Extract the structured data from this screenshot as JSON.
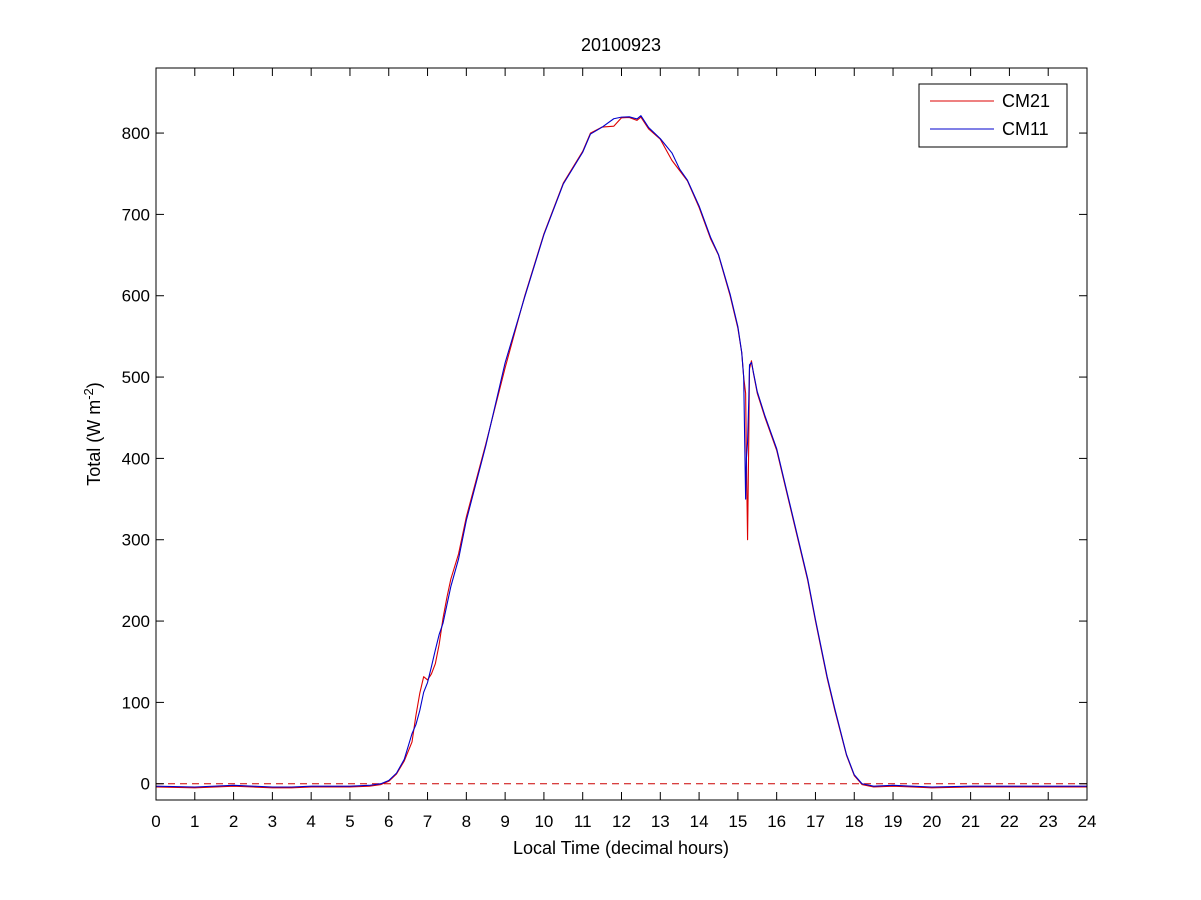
{
  "chart_data": {
    "type": "line",
    "title": "20100923",
    "xlabel": "Local Time (decimal hours)",
    "ylabel_main": "Total (W m",
    "ylabel_sup": "-2",
    "ylabel_close": ")",
    "xlim": [
      0,
      24
    ],
    "ylim": [
      -20,
      880
    ],
    "xticks": [
      0,
      1,
      2,
      3,
      4,
      5,
      6,
      7,
      8,
      9,
      10,
      11,
      12,
      13,
      14,
      15,
      16,
      17,
      18,
      19,
      20,
      21,
      22,
      23,
      24
    ],
    "yticks": [
      0,
      100,
      200,
      300,
      400,
      500,
      600,
      700,
      800
    ],
    "grid": false,
    "legend_position": "top-right",
    "reference_line": {
      "y": 0,
      "style": "dashed",
      "color": "#cc0000"
    },
    "series": [
      {
        "name": "CM21",
        "color": "#dd0000",
        "x": [
          0,
          1,
          2,
          2.5,
          3,
          3.5,
          4,
          4.5,
          5,
          5.5,
          5.8,
          6.0,
          6.2,
          6.4,
          6.6,
          6.7,
          6.8,
          6.9,
          7.0,
          7.1,
          7.2,
          7.3,
          7.4,
          7.5,
          7.6,
          7.8,
          8.0,
          8.5,
          9.0,
          9.5,
          10.0,
          10.5,
          11.0,
          11.2,
          11.5,
          11.8,
          12.0,
          12.2,
          12.4,
          12.5,
          12.7,
          13.0,
          13.3,
          13.5,
          13.7,
          14.0,
          14.3,
          14.5,
          14.8,
          15.0,
          15.1,
          15.15,
          15.2,
          15.22,
          15.25,
          15.28,
          15.3,
          15.35,
          15.4,
          15.5,
          15.7,
          16.0,
          16.3,
          16.5,
          16.8,
          17.0,
          17.3,
          17.5,
          17.8,
          18.0,
          18.2,
          18.5,
          19.0,
          19.5,
          20.0,
          21.0,
          22.0,
          23.0,
          24.0
        ],
        "y": [
          -4,
          -5,
          -3,
          -4,
          -5,
          -5,
          -4,
          -4,
          -4,
          -3,
          -1,
          3,
          12,
          28,
          55,
          85,
          110,
          128,
          130,
          135,
          145,
          175,
          205,
          228,
          248,
          285,
          328,
          415,
          515,
          600,
          675,
          735,
          780,
          800,
          805,
          812,
          820,
          818,
          812,
          822,
          805,
          790,
          770,
          755,
          740,
          705,
          672,
          650,
          600,
          560,
          530,
          500,
          480,
          400,
          300,
          420,
          510,
          520,
          505,
          480,
          450,
          410,
          350,
          310,
          250,
          200,
          130,
          90,
          35,
          10,
          -1,
          -4,
          -3,
          -4,
          -5,
          -4,
          -4,
          -4,
          -4
        ]
      },
      {
        "name": "CM11",
        "color": "#0000cc",
        "x": [
          0,
          1,
          2,
          2.5,
          3,
          3.5,
          4,
          4.5,
          5,
          5.5,
          5.8,
          6.0,
          6.2,
          6.4,
          6.6,
          6.7,
          6.8,
          6.9,
          7.0,
          7.1,
          7.2,
          7.3,
          7.4,
          7.5,
          7.6,
          7.8,
          8.0,
          8.5,
          9.0,
          9.5,
          10.0,
          10.5,
          11.0,
          11.2,
          11.5,
          11.8,
          12.0,
          12.2,
          12.4,
          12.5,
          12.7,
          13.0,
          13.3,
          13.5,
          13.7,
          14.0,
          14.3,
          14.5,
          14.8,
          15.0,
          15.1,
          15.15,
          15.2,
          15.22,
          15.25,
          15.28,
          15.3,
          15.35,
          15.4,
          15.5,
          15.7,
          16.0,
          16.3,
          16.5,
          16.8,
          17.0,
          17.3,
          17.5,
          17.8,
          18.0,
          18.2,
          18.5,
          19.0,
          19.5,
          20.0,
          21.0,
          22.0,
          23.0,
          24.0
        ],
        "y": [
          -3,
          -4,
          -2,
          -3,
          -4,
          -4,
          -3,
          -3,
          -3,
          -2,
          0,
          4,
          13,
          30,
          58,
          75,
          90,
          110,
          128,
          145,
          163,
          180,
          200,
          220,
          240,
          280,
          325,
          414,
          514,
          600,
          675,
          735,
          780,
          800,
          806,
          814,
          822,
          820,
          815,
          825,
          808,
          792,
          772,
          758,
          742,
          708,
          675,
          652,
          602,
          562,
          530,
          500,
          350,
          400,
          420,
          470,
          515,
          518,
          506,
          482,
          452,
          412,
          352,
          312,
          252,
          202,
          132,
          92,
          36,
          11,
          0,
          -3,
          -2,
          -3,
          -4,
          -3,
          -3,
          -3,
          -3
        ]
      }
    ]
  }
}
